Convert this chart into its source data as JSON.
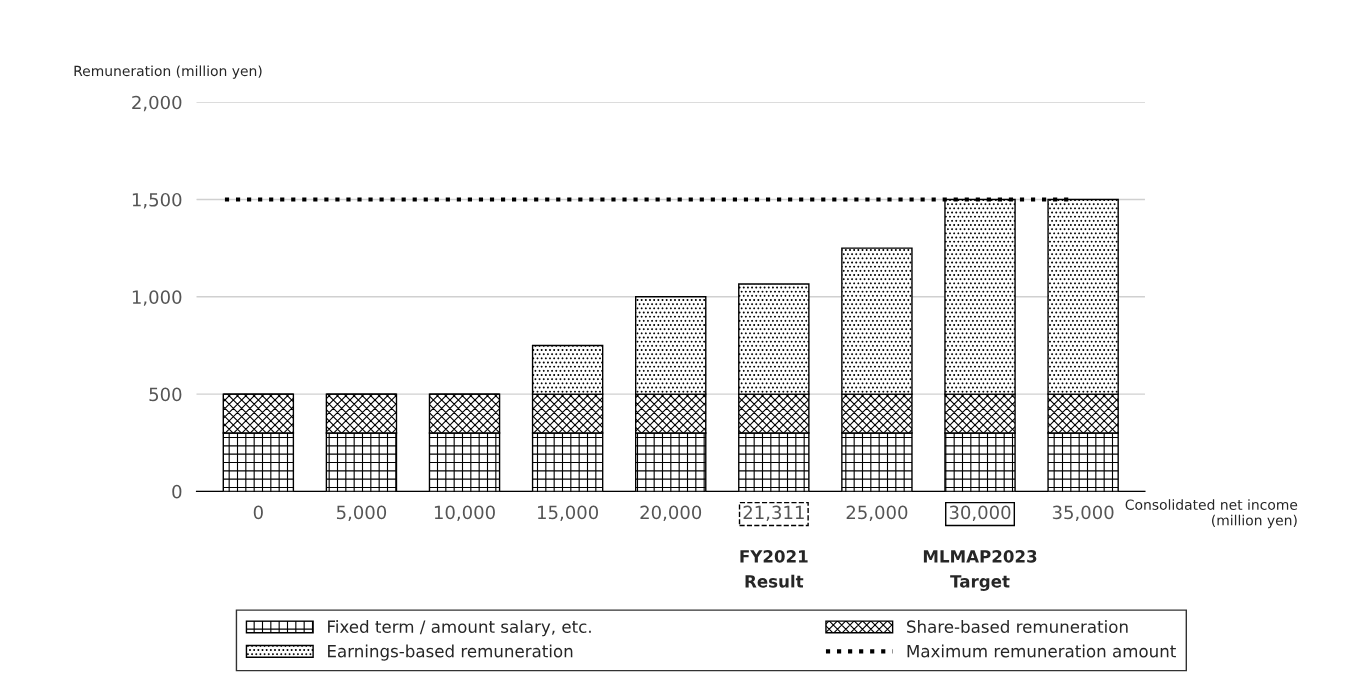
{
  "chart_data": {
    "type": "bar",
    "stacked": true,
    "categories": [
      "0",
      "5,000",
      "10,000",
      "15,000",
      "20,000",
      "21,311\nFY2021\nResult",
      "25,000",
      "30,000\nMLMAP2023\nTarget",
      "35,000"
    ],
    "series": [
      {
        "name": "Fixed term / amount salary, etc.",
        "color": "#000000",
        "values": [
          300,
          300,
          300,
          300,
          300,
          300,
          300,
          300,
          300
        ]
      },
      {
        "name": "Share-based remuneration",
        "color": "#000000",
        "values": [
          200,
          200,
          200,
          200,
          200,
          200,
          200,
          200,
          200
        ]
      },
      {
        "name": "Earnings-based remuneration",
        "color": "#000000",
        "values": [
          0,
          0,
          0,
          250,
          500,
          566,
          750,
          1000,
          1000
        ]
      }
    ],
    "ylabel": "Remuneration (million yen)",
    "xlabel": "Consolidated net income\n(million yen)",
    "ylim": [
      0,
      2000
    ],
    "yticks": [
      {
        "value": 0,
        "label": "0"
      },
      {
        "value": 500,
        "label": "500"
      },
      {
        "value": 1000,
        "label": "1,000"
      },
      {
        "value": 1500,
        "label": "1,500"
      },
      {
        "value": 2000,
        "label": "2,000"
      }
    ],
    "ref_lines": [
      {
        "axis": "y",
        "value": 1500,
        "label": "Maximum remuneration amount",
        "color": "#000000",
        "line_style": "dotted"
      }
    ],
    "grid": "y",
    "legend": "bottom"
  }
}
